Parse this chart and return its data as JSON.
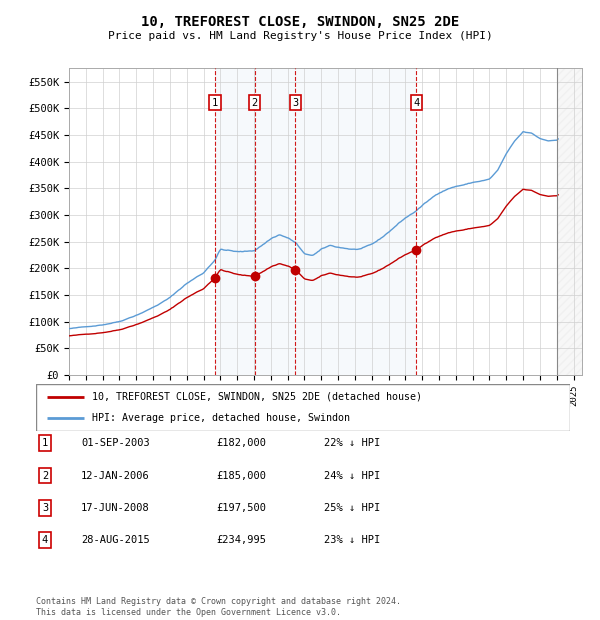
{
  "title": "10, TREFOREST CLOSE, SWINDON, SN25 2DE",
  "subtitle": "Price paid vs. HM Land Registry's House Price Index (HPI)",
  "ylim": [
    0,
    575000
  ],
  "yticks": [
    0,
    50000,
    100000,
    150000,
    200000,
    250000,
    300000,
    350000,
    400000,
    450000,
    500000,
    550000
  ],
  "ytick_labels": [
    "£0",
    "£50K",
    "£100K",
    "£150K",
    "£200K",
    "£250K",
    "£300K",
    "£350K",
    "£400K",
    "£450K",
    "£500K",
    "£550K"
  ],
  "hpi_line_color": "#5b9bd5",
  "sale_line_color": "#c00000",
  "grid_color": "#d0d0d0",
  "bg_color": "#ffffff",
  "sale_marker_color": "#c00000",
  "transactions": [
    {
      "date": "2003-09-01",
      "price": 182000,
      "label": "1",
      "x_num": 2003.667
    },
    {
      "date": "2006-01-12",
      "price": 185000,
      "label": "2",
      "x_num": 2006.033
    },
    {
      "date": "2008-06-17",
      "price": 197500,
      "label": "3",
      "x_num": 2008.458
    },
    {
      "date": "2015-08-28",
      "price": 234995,
      "label": "4",
      "x_num": 2015.65
    }
  ],
  "transaction_table": [
    {
      "num": "1",
      "date": "01-SEP-2003",
      "price": "£182,000",
      "hpi": "22% ↓ HPI"
    },
    {
      "num": "2",
      "date": "12-JAN-2006",
      "price": "£185,000",
      "hpi": "24% ↓ HPI"
    },
    {
      "num": "3",
      "date": "17-JUN-2008",
      "price": "£197,500",
      "hpi": "25% ↓ HPI"
    },
    {
      "num": "4",
      "date": "28-AUG-2015",
      "price": "£234,995",
      "hpi": "23% ↓ HPI"
    }
  ],
  "legend_entries": [
    {
      "label": "10, TREFOREST CLOSE, SWINDON, SN25 2DE (detached house)",
      "color": "#c00000"
    },
    {
      "label": "HPI: Average price, detached house, Swindon",
      "color": "#5b9bd5"
    }
  ],
  "footnote": "Contains HM Land Registry data © Crown copyright and database right 2024.\nThis data is licensed under the Open Government Licence v3.0.",
  "xlim_start": 1995.0,
  "xlim_end": 2025.5,
  "hatch_start": 2024.0
}
